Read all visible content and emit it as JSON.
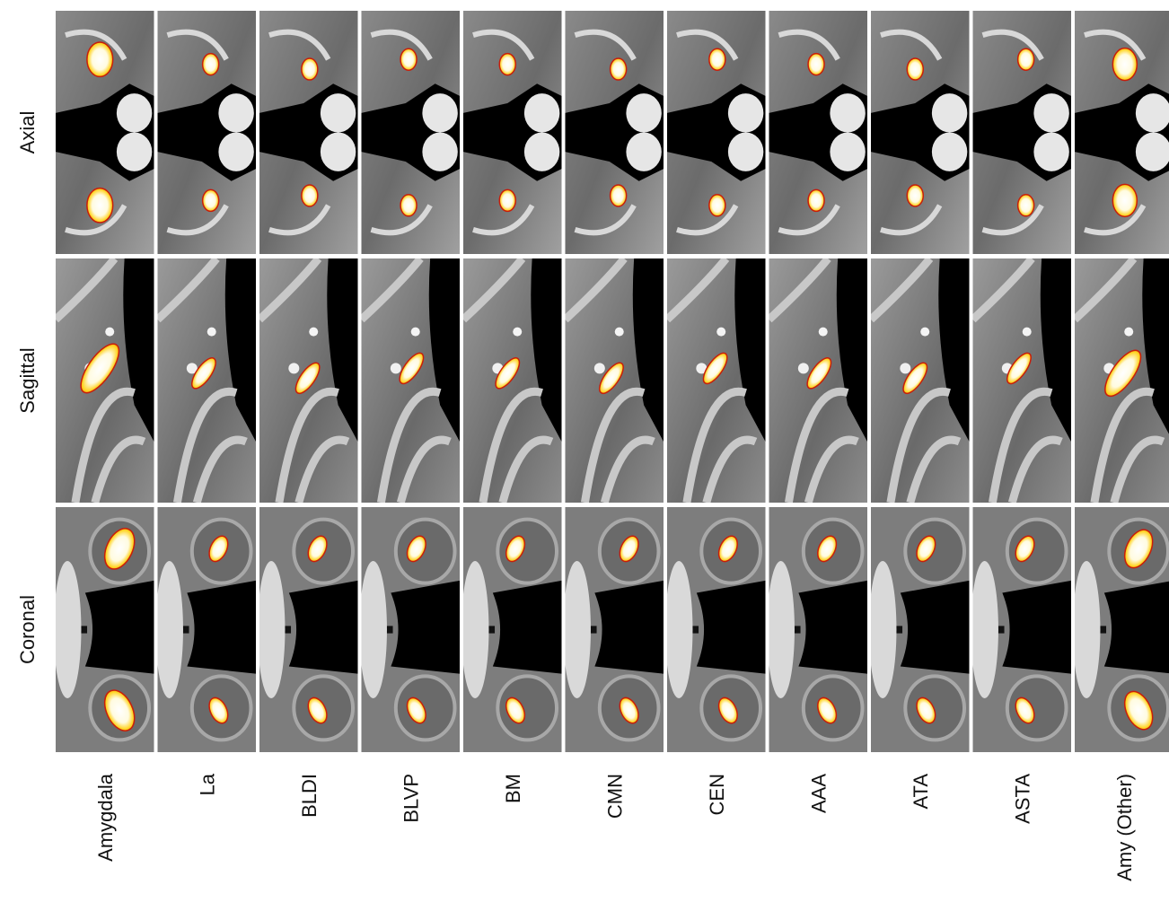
{
  "figure": {
    "rows": [
      "Axial",
      "Sagittal",
      "Coronal"
    ],
    "columns": [
      "Amygdala",
      "La",
      "BLDI",
      "BLVP",
      "BM",
      "CMN",
      "CEN",
      "AAA",
      "ATA",
      "ASTA",
      "Amy (Other)"
    ]
  }
}
